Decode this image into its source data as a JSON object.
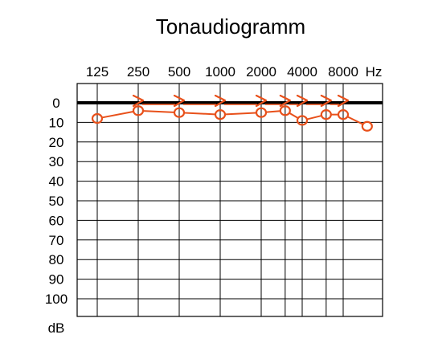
{
  "chart_data": {
    "type": "line",
    "title": "Tonaudiogramm",
    "x_unit": "Hz",
    "y_unit": "dB",
    "x_ticks": [
      "125",
      "250",
      "500",
      "1000",
      "2000",
      "4000",
      "8000"
    ],
    "y_ticks": [
      "0",
      "10",
      "20",
      "30",
      "40",
      "50",
      "60",
      "70",
      "80",
      "90",
      "100"
    ],
    "ylim": [
      0,
      110
    ],
    "y_inverted": true,
    "grid": true,
    "x_scale": "log2 (octaves, with half-octave lines from 2000 Hz)",
    "series": [
      {
        "marker": "circle",
        "color": "#e8501a",
        "x": [
          125,
          250,
          500,
          1000,
          2000,
          3000,
          4000,
          6000,
          8000,
          12000
        ],
        "y": [
          8,
          4,
          5,
          6,
          5,
          4,
          9,
          6,
          6,
          12
        ]
      },
      {
        "marker": "chevron-right",
        "color": "#e8501a",
        "x": [
          250,
          500,
          1000,
          2000,
          3000,
          4000,
          6000,
          8000
        ],
        "y": [
          0,
          0,
          0,
          0,
          0,
          0,
          0,
          0
        ]
      }
    ],
    "reference_line": {
      "y": 0,
      "color": "#000000"
    }
  }
}
